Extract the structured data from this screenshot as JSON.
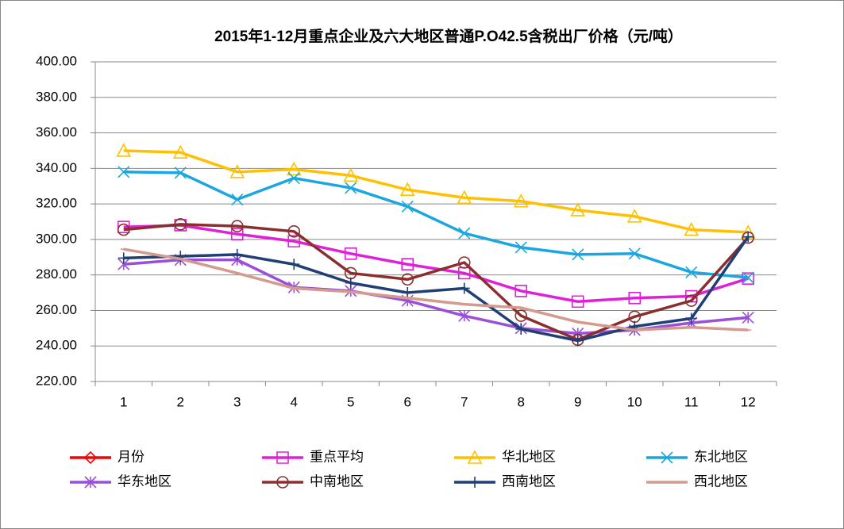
{
  "chart_data": {
    "type": "line",
    "title": "2015年1-12月重点企业及六大地区普通P.O42.5含税出厂价格（元/吨）",
    "categories": [
      "1",
      "2",
      "3",
      "4",
      "5",
      "6",
      "7",
      "8",
      "9",
      "10",
      "11",
      "12"
    ],
    "ylim": [
      220,
      400
    ],
    "yticks": [
      {
        "value": 220,
        "label": "220.00"
      },
      {
        "value": 240,
        "label": "240.00"
      },
      {
        "value": 260,
        "label": "260.00"
      },
      {
        "value": 280,
        "label": "280.00"
      },
      {
        "value": 300,
        "label": "300.00"
      },
      {
        "value": 320,
        "label": "320.00"
      },
      {
        "value": 340,
        "label": "340.00"
      },
      {
        "value": 360,
        "label": "360.00"
      },
      {
        "value": 380,
        "label": "380.00"
      },
      {
        "value": 400,
        "label": "400.00"
      }
    ],
    "grid": true,
    "legend": "bottom",
    "series": [
      {
        "name": "月份",
        "color": "#ff0000",
        "marker": "diamond",
        "values": [
          null,
          null,
          null,
          null,
          null,
          null,
          null,
          null,
          null,
          null,
          null,
          null
        ]
      },
      {
        "name": "重点平均",
        "color": "#e020d8",
        "marker": "square",
        "values": [
          307,
          308,
          303,
          299,
          292,
          286,
          281,
          271,
          265,
          267,
          268,
          278
        ]
      },
      {
        "name": "华北地区",
        "color": "#ffc000",
        "marker": "triangle",
        "values": [
          350,
          349,
          338,
          339.5,
          336,
          328,
          323.5,
          321.5,
          316.5,
          313,
          305.5,
          304
        ]
      },
      {
        "name": "东北地区",
        "color": "#1aa7e0",
        "marker": "x",
        "values": [
          338,
          337.5,
          322.5,
          334.5,
          329,
          318.5,
          303.5,
          295.5,
          291.5,
          292,
          281.5,
          278.5
        ]
      },
      {
        "name": "华东地区",
        "color": "#9a4fd8",
        "marker": "star",
        "values": [
          286,
          288.5,
          288.5,
          273,
          271,
          265.5,
          257,
          250,
          247,
          249,
          253,
          256
        ]
      },
      {
        "name": "中南地区",
        "color": "#8b2e2e",
        "marker": "circle",
        "values": [
          305.5,
          308.5,
          307.5,
          304.5,
          281,
          277.5,
          287,
          257,
          243.5,
          256.5,
          265.5,
          301
        ]
      },
      {
        "name": "西南地区",
        "color": "#1f3f75",
        "marker": "plus",
        "values": [
          289.5,
          290.5,
          291.5,
          286,
          275.5,
          270,
          272.5,
          249.5,
          243,
          251,
          255.5,
          301.5
        ]
      },
      {
        "name": "西北地区",
        "color": "#d49a8e",
        "marker": "dash",
        "values": [
          294.5,
          289,
          281,
          272.5,
          270.5,
          267,
          263.5,
          261.5,
          253.5,
          249,
          250.5,
          249
        ]
      }
    ]
  }
}
